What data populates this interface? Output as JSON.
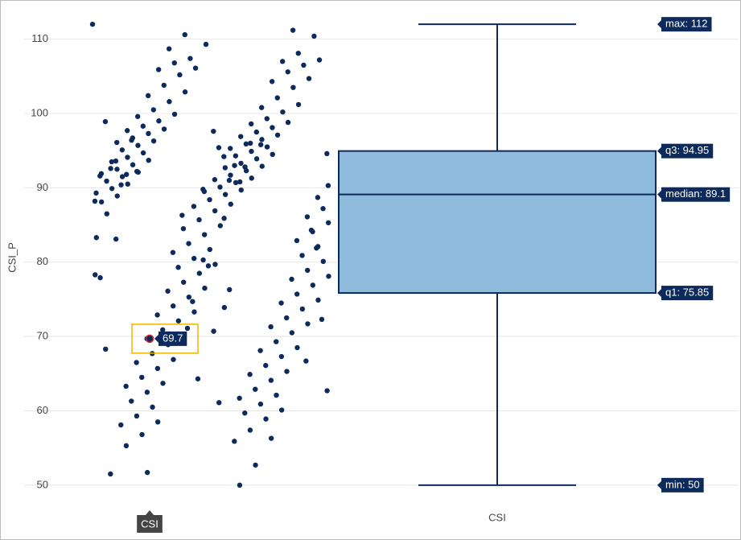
{
  "chart_data": {
    "type": "box",
    "y_label": "CSI_P",
    "category": "CSI",
    "ylim": [
      47.6,
      114.4
    ],
    "yticks": [
      50,
      60,
      70,
      80,
      90,
      100,
      110
    ],
    "grid": true,
    "point_color": "#0c2a5b",
    "box_fill": "#8fbbdd",
    "box_line": "#0c2a5b",
    "box": {
      "min": 50,
      "q1": 75.85,
      "median": 89.1,
      "q3": 94.95,
      "max": 112
    },
    "box_labels": {
      "min": "min: 50",
      "q1": "q1: 75.85",
      "median": "median: 89.1",
      "q3": "q3: 94.95",
      "max": "max: 112"
    },
    "hover": {
      "value": 69.7
    },
    "values": [
      112,
      111.2,
      110.6,
      110.4,
      109.3,
      108.7,
      108.1,
      107.4,
      107.2,
      107.0,
      106.8,
      106.5,
      106.1,
      105.9,
      105.6,
      105.2,
      104.7,
      104.3,
      103.8,
      103.5,
      102.9,
      102.4,
      102.1,
      101.6,
      101.2,
      100.8,
      100.5,
      100.2,
      99.9,
      99.6,
      99.3,
      99.0,
      98.8,
      98.6,
      98.3,
      98.1,
      97.9,
      97.7,
      97.5,
      97.3,
      97.1,
      96.9,
      96.7,
      96.5,
      96.3,
      96.1,
      95.9,
      95.7,
      95.5,
      95.3,
      95.1,
      94.9,
      94.7,
      94.5,
      94.3,
      94.1,
      93.9,
      93.7,
      93.5,
      93.3,
      93.1,
      92.9,
      92.7,
      92.5,
      92.3,
      92.1,
      91.9,
      91.7,
      91.5,
      91.3,
      91.1,
      90.9,
      90.7,
      90.5,
      90.3,
      90.1,
      89.9,
      89.7,
      89.5,
      89.3,
      89.1,
      88.9,
      88.7,
      88.4,
      88.1,
      87.8,
      87.5,
      87.2,
      86.9,
      86.5,
      86.1,
      85.7,
      85.3,
      84.9,
      84.5,
      84.1,
      83.7,
      83.3,
      82.9,
      82.5,
      82.1,
      81.7,
      81.3,
      80.9,
      80.5,
      80.1,
      79.7,
      79.3,
      78.9,
      78.5,
      78.1,
      77.7,
      77.3,
      76.9,
      76.5,
      76.1,
      75.7,
      75.3,
      74.9,
      74.5,
      74.1,
      73.7,
      73.3,
      72.9,
      72.5,
      72.1,
      71.7,
      71.3,
      70.9,
      70.5,
      70.1,
      69.7,
      69.3,
      68.9,
      68.5,
      68.1,
      67.7,
      67.3,
      66.9,
      66.5,
      66.1,
      65.7,
      65.3,
      64.9,
      64.5,
      64.1,
      63.7,
      63.3,
      62.9,
      62.5,
      62.1,
      61.7,
      61.3,
      60.9,
      60.5,
      60.1,
      59.7,
      59.3,
      58.9,
      58.5,
      58.1,
      57.4,
      56.8,
      56.3,
      55.9,
      55.3,
      52.7,
      51.7,
      51.5,
      50,
      96.4,
      95.8,
      94.2,
      93.6,
      92.8,
      92.2,
      91.6,
      91.0,
      90.4,
      96.0,
      97.6,
      98.9,
      93.0,
      91.8,
      94.6,
      95.4,
      92.6,
      90.8,
      89.8,
      88.2,
      85.9,
      83.1,
      81.9,
      79.5,
      77.9,
      76.3,
      74.7,
      72.3,
      70.7,
      68.3,
      66.7,
      64.3,
      62.7,
      61.1,
      86.3,
      84.3,
      80.3,
      78.3,
      73.9,
      71.1
    ]
  }
}
